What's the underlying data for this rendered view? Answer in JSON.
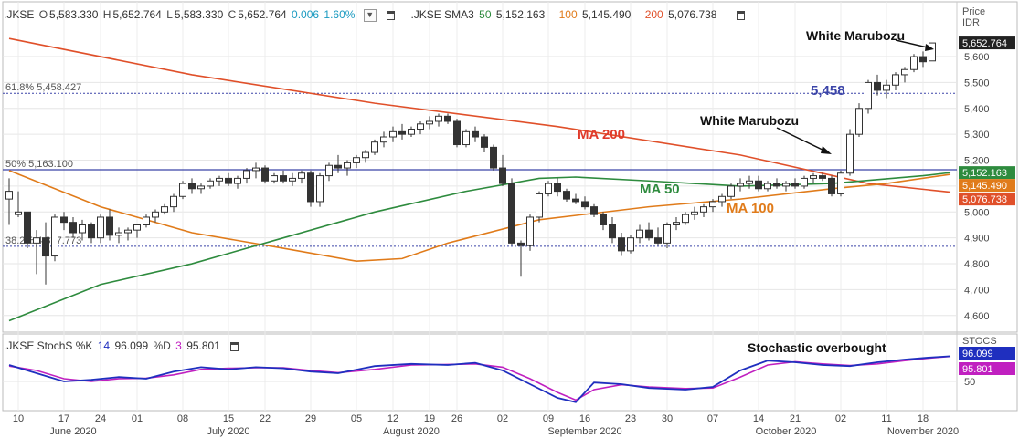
{
  "header": {
    "symbol": ".JKSE",
    "o_label": "O",
    "o_value": "5,583.330",
    "h_label": "H",
    "h_value": "5,652.764",
    "l_label": "L",
    "l_value": "5,583.330",
    "c_label": "C",
    "c_value": "5,652.764",
    "change": "0.006",
    "change_pct": "1.60%",
    "sma_label": ".JKSE SMA3",
    "sma_p1": "50",
    "sma_v1": "5,152.163",
    "sma_p2": "100",
    "sma_v2": "5,145.490",
    "sma_p3": "200",
    "sma_v3": "5,076.738"
  },
  "axis": {
    "price_label": "Price",
    "currency": "IDR",
    "stoch_label": "STOCS"
  },
  "colors": {
    "up": "#ffffff",
    "down": "#333333",
    "ma50": "#2e8b3e",
    "ma100": "#e07b1a",
    "ma200": "#e0502a",
    "stoch_k": "#1f2fbf",
    "stoch_d": "#c020c0",
    "fib": "#3b44a8",
    "change": "#1a9ac0"
  },
  "stoch_header": {
    "label": ".JKSE StochS %K",
    "k_period": "14",
    "k_value": "96.099",
    "d_label": "%D",
    "d_period": "3",
    "d_value": "95.801"
  },
  "chart_data": {
    "type": "candlestick",
    "price_ylim": [
      4550,
      5720
    ],
    "price_ticks": [
      4600,
      4700,
      4800,
      4900,
      5000,
      5100,
      5200,
      5300,
      5400,
      5500,
      5600
    ],
    "price_tick_labels": [
      "4,600",
      "4,700",
      "4,800",
      "4,900",
      "5,000",
      "5,100",
      "5,200",
      "5,300",
      "5,400",
      "5,500",
      "5,600"
    ],
    "x_ticks": [
      {
        "i": 1,
        "label": "10"
      },
      {
        "i": 6,
        "label": "17"
      },
      {
        "i": 10,
        "label": "24"
      },
      {
        "i": 14,
        "label": "01"
      },
      {
        "i": 19,
        "label": "08"
      },
      {
        "i": 24,
        "label": "15"
      },
      {
        "i": 28,
        "label": "22"
      },
      {
        "i": 33,
        "label": "29"
      },
      {
        "i": 38,
        "label": "05"
      },
      {
        "i": 42,
        "label": "12"
      },
      {
        "i": 46,
        "label": "19"
      },
      {
        "i": 49,
        "label": "26"
      },
      {
        "i": 54,
        "label": "02"
      },
      {
        "i": 59,
        "label": "09"
      },
      {
        "i": 63,
        "label": "16"
      },
      {
        "i": 68,
        "label": "23"
      },
      {
        "i": 72,
        "label": "30"
      },
      {
        "i": 77,
        "label": "07"
      },
      {
        "i": 82,
        "label": "14"
      },
      {
        "i": 86,
        "label": "21"
      },
      {
        "i": 91,
        "label": "02"
      },
      {
        "i": 96,
        "label": "11"
      },
      {
        "i": 100,
        "label": "18"
      }
    ],
    "months": [
      {
        "i": 7,
        "label": "June 2020"
      },
      {
        "i": 24,
        "label": "July 2020"
      },
      {
        "i": 44,
        "label": "August 2020"
      },
      {
        "i": 63,
        "label": "September 2020"
      },
      {
        "i": 85,
        "label": "October 2020"
      },
      {
        "i": 100,
        "label": "November 2020"
      }
    ],
    "ohlc": [
      [
        5050,
        5130,
        4950,
        5080
      ],
      [
        4990,
        5080,
        4980,
        5000
      ],
      [
        5000,
        5000,
        4860,
        4880
      ],
      [
        4880,
        4930,
        4760,
        4900
      ],
      [
        4900,
        4960,
        4720,
        4830
      ],
      [
        4830,
        4990,
        4810,
        4980
      ],
      [
        4980,
        5000,
        4930,
        4960
      ],
      [
        4960,
        4980,
        4900,
        4920
      ],
      [
        4920,
        4970,
        4890,
        4950
      ],
      [
        4950,
        4960,
        4880,
        4900
      ],
      [
        4900,
        4990,
        4880,
        4980
      ],
      [
        4980,
        5010,
        4890,
        4910
      ],
      [
        4910,
        4940,
        4880,
        4920
      ],
      [
        4920,
        4940,
        4890,
        4930
      ],
      [
        4930,
        4950,
        4900,
        4950
      ],
      [
        4950,
        4990,
        4940,
        4980
      ],
      [
        4980,
        5010,
        4960,
        5000
      ],
      [
        5000,
        5030,
        4990,
        5020
      ],
      [
        5020,
        5070,
        5000,
        5060
      ],
      [
        5060,
        5120,
        5050,
        5110
      ],
      [
        5110,
        5130,
        5070,
        5090
      ],
      [
        5090,
        5110,
        5070,
        5100
      ],
      [
        5100,
        5130,
        5090,
        5120
      ],
      [
        5120,
        5140,
        5100,
        5130
      ],
      [
        5130,
        5150,
        5100,
        5110
      ],
      [
        5110,
        5140,
        5090,
        5130
      ],
      [
        5130,
        5170,
        5110,
        5160
      ],
      [
        5160,
        5190,
        5130,
        5170
      ],
      [
        5170,
        5180,
        5110,
        5120
      ],
      [
        5120,
        5150,
        5110,
        5140
      ],
      [
        5140,
        5160,
        5110,
        5120
      ],
      [
        5120,
        5150,
        5100,
        5130
      ],
      [
        5130,
        5160,
        5110,
        5150
      ],
      [
        5150,
        5160,
        5020,
        5040
      ],
      [
        5040,
        5150,
        5020,
        5140
      ],
      [
        5140,
        5190,
        5120,
        5180
      ],
      [
        5180,
        5220,
        5150,
        5170
      ],
      [
        5170,
        5200,
        5140,
        5190
      ],
      [
        5190,
        5220,
        5170,
        5210
      ],
      [
        5210,
        5240,
        5190,
        5230
      ],
      [
        5230,
        5280,
        5220,
        5270
      ],
      [
        5270,
        5310,
        5250,
        5290
      ],
      [
        5290,
        5330,
        5270,
        5310
      ],
      [
        5310,
        5340,
        5280,
        5300
      ],
      [
        5300,
        5330,
        5290,
        5320
      ],
      [
        5320,
        5350,
        5300,
        5340
      ],
      [
        5340,
        5370,
        5320,
        5350
      ],
      [
        5350,
        5380,
        5330,
        5370
      ],
      [
        5370,
        5380,
        5340,
        5350
      ],
      [
        5350,
        5360,
        5250,
        5260
      ],
      [
        5260,
        5320,
        5250,
        5310
      ],
      [
        5310,
        5330,
        5270,
        5290
      ],
      [
        5290,
        5300,
        5230,
        5250
      ],
      [
        5250,
        5260,
        5160,
        5170
      ],
      [
        5170,
        5220,
        5100,
        5110
      ],
      [
        5110,
        5130,
        4870,
        4880
      ],
      [
        4880,
        4890,
        4750,
        4870
      ],
      [
        4870,
        4990,
        4850,
        4980
      ],
      [
        4980,
        5080,
        4960,
        5070
      ],
      [
        5070,
        5120,
        5060,
        5110
      ],
      [
        5110,
        5130,
        5060,
        5080
      ],
      [
        5080,
        5090,
        5040,
        5050
      ],
      [
        5050,
        5070,
        5030,
        5040
      ],
      [
        5040,
        5060,
        5010,
        5020
      ],
      [
        5020,
        5030,
        4980,
        4990
      ],
      [
        4990,
        5000,
        4930,
        4950
      ],
      [
        4950,
        4980,
        4880,
        4900
      ],
      [
        4900,
        4920,
        4830,
        4850
      ],
      [
        4850,
        4910,
        4840,
        4900
      ],
      [
        4900,
        4950,
        4880,
        4930
      ],
      [
        4930,
        4960,
        4890,
        4900
      ],
      [
        4900,
        4940,
        4870,
        4880
      ],
      [
        4880,
        4960,
        4860,
        4950
      ],
      [
        4950,
        4980,
        4930,
        4960
      ],
      [
        4960,
        5000,
        4950,
        4990
      ],
      [
        4990,
        5020,
        4970,
        5000
      ],
      [
        5000,
        5030,
        4980,
        5020
      ],
      [
        5020,
        5050,
        5000,
        5040
      ],
      [
        5040,
        5070,
        5020,
        5060
      ],
      [
        5060,
        5110,
        5050,
        5100
      ],
      [
        5100,
        5130,
        5080,
        5110
      ],
      [
        5110,
        5140,
        5090,
        5120
      ],
      [
        5120,
        5140,
        5080,
        5090
      ],
      [
        5090,
        5120,
        5080,
        5110
      ],
      [
        5110,
        5130,
        5090,
        5100
      ],
      [
        5100,
        5120,
        5080,
        5110
      ],
      [
        5110,
        5130,
        5090,
        5100
      ],
      [
        5100,
        5140,
        5090,
        5130
      ],
      [
        5130,
        5150,
        5110,
        5140
      ],
      [
        5140,
        5150,
        5120,
        5130
      ],
      [
        5130,
        5140,
        5060,
        5070
      ],
      [
        5070,
        5160,
        5060,
        5150
      ],
      [
        5150,
        5320,
        5140,
        5300
      ],
      [
        5300,
        5420,
        5290,
        5400
      ],
      [
        5400,
        5510,
        5380,
        5500
      ],
      [
        5500,
        5530,
        5450,
        5470
      ],
      [
        5470,
        5510,
        5440,
        5490
      ],
      [
        5490,
        5540,
        5470,
        5530
      ],
      [
        5530,
        5560,
        5500,
        5550
      ],
      [
        5550,
        5610,
        5540,
        5600
      ],
      [
        5600,
        5620,
        5560,
        5580
      ],
      [
        5583.33,
        5652.764,
        5583.33,
        5652.764
      ]
    ],
    "ma50": [
      [
        0,
        4580
      ],
      [
        10,
        4720
      ],
      [
        20,
        4800
      ],
      [
        30,
        4900
      ],
      [
        40,
        5000
      ],
      [
        50,
        5080
      ],
      [
        58,
        5130
      ],
      [
        62,
        5135
      ],
      [
        70,
        5120
      ],
      [
        80,
        5100
      ],
      [
        90,
        5110
      ],
      [
        100,
        5140
      ],
      [
        103,
        5152.163
      ]
    ],
    "ma100": [
      [
        0,
        5160
      ],
      [
        10,
        5020
      ],
      [
        20,
        4920
      ],
      [
        30,
        4860
      ],
      [
        38,
        4810
      ],
      [
        43,
        4820
      ],
      [
        48,
        4880
      ],
      [
        58,
        4970
      ],
      [
        70,
        5020
      ],
      [
        80,
        5050
      ],
      [
        90,
        5090
      ],
      [
        96,
        5110
      ],
      [
        103,
        5145.49
      ]
    ],
    "ma200": [
      [
        0,
        5670
      ],
      [
        20,
        5530
      ],
      [
        40,
        5420
      ],
      [
        60,
        5330
      ],
      [
        80,
        5220
      ],
      [
        94,
        5110
      ],
      [
        103,
        5076.738
      ]
    ],
    "fib_levels": [
      {
        "price": 5458.427,
        "label": "61.8%",
        "value": "5,458.427"
      },
      {
        "price": 5163.1,
        "label": "50%",
        "value": "5,163.100"
      },
      {
        "price": 4867.773,
        "label": "38.2%",
        "value": "4,867.773"
      }
    ],
    "fib_callout": "5,458",
    "current_price": "5,652.764",
    "annotations": [
      "White Marubozu",
      "White Marubozu",
      "MA 200",
      "MA 50",
      "MA 100",
      "Stochastic overbought"
    ],
    "stoch_ylim": [
      0,
      100
    ],
    "stoch_ticks": [
      {
        "v": 50,
        "label": "50"
      }
    ],
    "stoch_k": [
      [
        0,
        80
      ],
      [
        3,
        65
      ],
      [
        6,
        50
      ],
      [
        9,
        53
      ],
      [
        12,
        58
      ],
      [
        15,
        55
      ],
      [
        18,
        68
      ],
      [
        21,
        76
      ],
      [
        24,
        72
      ],
      [
        27,
        76
      ],
      [
        30,
        74
      ],
      [
        33,
        68
      ],
      [
        36,
        65
      ],
      [
        40,
        78
      ],
      [
        44,
        82
      ],
      [
        48,
        80
      ],
      [
        51,
        84
      ],
      [
        54,
        70
      ],
      [
        57,
        45
      ],
      [
        60,
        20
      ],
      [
        62,
        12
      ],
      [
        64,
        48
      ],
      [
        67,
        45
      ],
      [
        70,
        38
      ],
      [
        74,
        35
      ],
      [
        77,
        40
      ],
      [
        80,
        70
      ],
      [
        83,
        88
      ],
      [
        86,
        85
      ],
      [
        89,
        80
      ],
      [
        92,
        78
      ],
      [
        95,
        85
      ],
      [
        98,
        90
      ],
      [
        101,
        94
      ],
      [
        103,
        96.099
      ]
    ],
    "stoch_d": [
      [
        0,
        78
      ],
      [
        3,
        70
      ],
      [
        6,
        55
      ],
      [
        9,
        50
      ],
      [
        12,
        55
      ],
      [
        15,
        56
      ],
      [
        18,
        62
      ],
      [
        21,
        72
      ],
      [
        24,
        74
      ],
      [
        27,
        75
      ],
      [
        30,
        75
      ],
      [
        33,
        70
      ],
      [
        36,
        66
      ],
      [
        40,
        72
      ],
      [
        44,
        80
      ],
      [
        48,
        81
      ],
      [
        51,
        82
      ],
      [
        54,
        76
      ],
      [
        57,
        55
      ],
      [
        60,
        30
      ],
      [
        62,
        16
      ],
      [
        64,
        35
      ],
      [
        67,
        44
      ],
      [
        70,
        40
      ],
      [
        74,
        37
      ],
      [
        77,
        38
      ],
      [
        80,
        58
      ],
      [
        83,
        80
      ],
      [
        86,
        86
      ],
      [
        89,
        82
      ],
      [
        92,
        79
      ],
      [
        95,
        82
      ],
      [
        98,
        88
      ],
      [
        101,
        93
      ],
      [
        103,
        95.801
      ]
    ]
  }
}
